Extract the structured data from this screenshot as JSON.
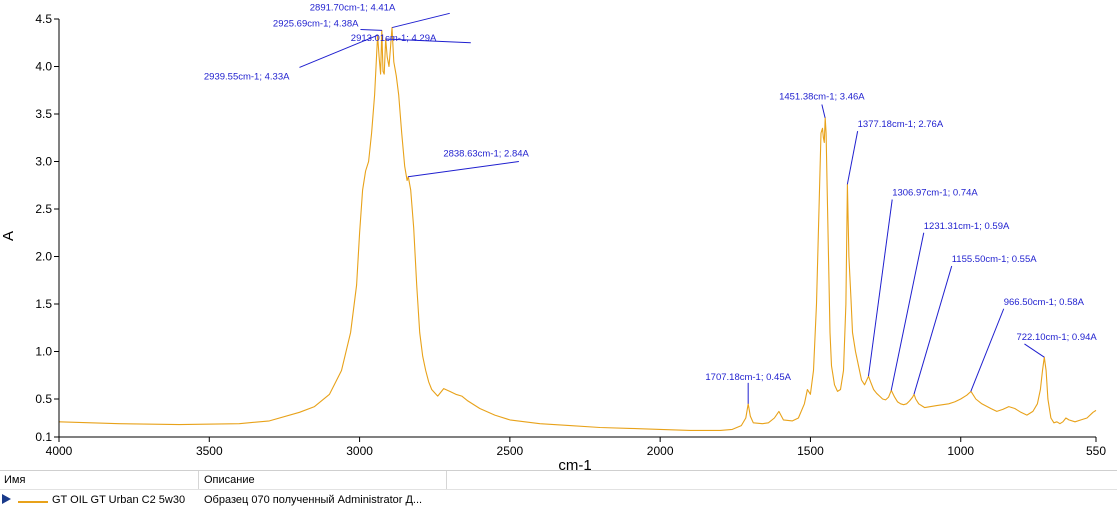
{
  "chart_data": {
    "type": "line",
    "xlabel": "cm-1",
    "ylabel": "A",
    "xlim": [
      4000,
      550
    ],
    "ylim": [
      0.1,
      4.5
    ],
    "x_ticks": [
      4000,
      3500,
      3000,
      2500,
      2000,
      1500,
      1000,
      550
    ],
    "y_ticks": [
      0.1,
      0.5,
      1.0,
      1.5,
      2.0,
      2.5,
      3.0,
      3.5,
      4.0,
      4.5
    ],
    "x_tick_labels": [
      "4000",
      "3500",
      "3000",
      "2500",
      "2000",
      "1500",
      "1000",
      "550"
    ],
    "y_tick_labels": [
      "0.1",
      "0.5",
      "1.0",
      "1.5",
      "2.0",
      "2.5",
      "3.0",
      "3.5",
      "4.0",
      "4.5"
    ],
    "series": [
      {
        "name": "GT OIL GT Urban C2 5w30",
        "color": "#e8a21a",
        "x": [
          4000,
          3800,
          3600,
          3400,
          3300,
          3200,
          3150,
          3100,
          3060,
          3030,
          3010,
          3000,
          2990,
          2980,
          2970,
          2960,
          2950,
          2940,
          2935,
          2930,
          2926,
          2922,
          2918,
          2913,
          2908,
          2902,
          2897,
          2892,
          2886,
          2878,
          2870,
          2860,
          2850,
          2842,
          2838,
          2830,
          2820,
          2810,
          2800,
          2790,
          2780,
          2770,
          2760,
          2740,
          2720,
          2700,
          2680,
          2660,
          2640,
          2600,
          2550,
          2500,
          2400,
          2300,
          2200,
          2100,
          2000,
          1900,
          1800,
          1760,
          1730,
          1715,
          1707,
          1700,
          1690,
          1660,
          1640,
          1620,
          1605,
          1600,
          1590,
          1560,
          1540,
          1520,
          1510,
          1500,
          1490,
          1480,
          1470,
          1465,
          1460,
          1457,
          1454,
          1451,
          1448,
          1445,
          1440,
          1435,
          1430,
          1420,
          1410,
          1400,
          1390,
          1382,
          1377,
          1372,
          1365,
          1360,
          1350,
          1340,
          1330,
          1320,
          1307,
          1300,
          1290,
          1280,
          1270,
          1260,
          1250,
          1240,
          1231,
          1220,
          1210,
          1200,
          1190,
          1180,
          1170,
          1160,
          1155,
          1150,
          1140,
          1120,
          1100,
          1080,
          1060,
          1040,
          1020,
          1000,
          980,
          966,
          950,
          930,
          900,
          880,
          860,
          840,
          820,
          800,
          780,
          760,
          745,
          735,
          728,
          722,
          716,
          710,
          700,
          690,
          680,
          670,
          660,
          650,
          640,
          620,
          600,
          580,
          560,
          550
        ],
        "y": [
          0.26,
          0.24,
          0.23,
          0.24,
          0.27,
          0.36,
          0.42,
          0.55,
          0.8,
          1.2,
          1.7,
          2.25,
          2.7,
          2.9,
          3.0,
          3.3,
          3.7,
          4.33,
          4.1,
          3.92,
          4.38,
          3.95,
          3.92,
          4.29,
          4.1,
          4.0,
          4.2,
          4.41,
          4.05,
          3.9,
          3.7,
          3.3,
          2.95,
          2.8,
          2.84,
          2.7,
          2.3,
          1.7,
          1.2,
          0.95,
          0.8,
          0.68,
          0.6,
          0.53,
          0.61,
          0.58,
          0.55,
          0.53,
          0.48,
          0.4,
          0.33,
          0.28,
          0.24,
          0.22,
          0.2,
          0.19,
          0.18,
          0.17,
          0.17,
          0.18,
          0.22,
          0.3,
          0.45,
          0.32,
          0.25,
          0.24,
          0.25,
          0.3,
          0.37,
          0.34,
          0.28,
          0.27,
          0.3,
          0.45,
          0.6,
          0.55,
          0.8,
          1.5,
          2.7,
          3.3,
          3.35,
          3.25,
          3.2,
          3.46,
          3.3,
          2.8,
          2.0,
          1.2,
          0.85,
          0.65,
          0.58,
          0.6,
          0.8,
          1.5,
          2.76,
          2.0,
          1.55,
          1.2,
          1.0,
          0.85,
          0.7,
          0.65,
          0.74,
          0.68,
          0.6,
          0.56,
          0.53,
          0.5,
          0.49,
          0.52,
          0.59,
          0.52,
          0.47,
          0.45,
          0.44,
          0.45,
          0.48,
          0.52,
          0.55,
          0.5,
          0.45,
          0.41,
          0.42,
          0.43,
          0.44,
          0.45,
          0.47,
          0.5,
          0.54,
          0.58,
          0.5,
          0.45,
          0.4,
          0.37,
          0.39,
          0.42,
          0.4,
          0.36,
          0.33,
          0.37,
          0.45,
          0.6,
          0.8,
          0.94,
          0.8,
          0.5,
          0.3,
          0.25,
          0.26,
          0.24,
          0.26,
          0.3,
          0.28,
          0.26,
          0.28,
          0.3,
          0.36,
          0.38
        ]
      }
    ],
    "annotations": [
      {
        "text": "2925.69cm-1; 4.38A",
        "x": 2925.69,
        "y": 4.38,
        "lx": 2997,
        "ly": 4.39
      },
      {
        "text": "2891.70cm-1; 4.41A",
        "x": 2891.7,
        "y": 4.41,
        "lx": 2700,
        "ly": 4.56
      },
      {
        "text": "2913.01cm-1; 4.29A",
        "x": 2913.01,
        "y": 4.29,
        "lx": 2630,
        "ly": 4.25
      },
      {
        "text": "2939.55cm-1; 4.33A",
        "x": 2939.55,
        "y": 4.33,
        "lx": 3200,
        "ly": 3.99
      },
      {
        "text": "2838.63cm-1; 2.84A",
        "x": 2838.63,
        "y": 2.84,
        "lx": 2470,
        "ly": 3.0
      },
      {
        "text": "1451.38cm-1; 3.46A",
        "x": 1451.38,
        "y": 3.46,
        "lx": 1462,
        "ly": 3.6
      },
      {
        "text": "1377.18cm-1; 2.76A",
        "x": 1377.18,
        "y": 2.76,
        "lx": 1343,
        "ly": 3.32
      },
      {
        "text": "1306.97cm-1; 0.74A",
        "x": 1306.97,
        "y": 0.74,
        "lx": 1228,
        "ly": 2.6
      },
      {
        "text": "1231.31cm-1; 0.59A",
        "x": 1231.31,
        "y": 0.59,
        "lx": 1123,
        "ly": 2.25
      },
      {
        "text": "1155.50cm-1; 0.55A",
        "x": 1155.5,
        "y": 0.55,
        "lx": 1030,
        "ly": 1.9
      },
      {
        "text": "966.50cm-1; 0.58A",
        "x": 966.5,
        "y": 0.58,
        "lx": 857,
        "ly": 1.45
      },
      {
        "text": "722.10cm-1; 0.94A",
        "x": 722.1,
        "y": 0.94,
        "lx": 788,
        "ly": 1.08
      },
      {
        "text": "1707.18cm-1; 0.45A",
        "x": 1707.18,
        "y": 0.45,
        "lx": 1707.18,
        "ly": 0.67
      }
    ]
  },
  "legend_table": {
    "headers": [
      "Имя",
      "Описание"
    ],
    "row": {
      "name": "GT OIL GT Urban C2 5w30",
      "description": "Образец 070 полученный Administrator Д..."
    }
  }
}
